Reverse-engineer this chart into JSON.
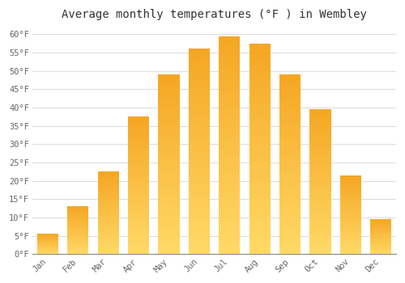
{
  "title": "Average monthly temperatures (°F ) in Wembley",
  "months": [
    "Jan",
    "Feb",
    "Mar",
    "Apr",
    "May",
    "Jun",
    "Jul",
    "Aug",
    "Sep",
    "Oct",
    "Nov",
    "Dec"
  ],
  "values": [
    5.5,
    13.0,
    22.5,
    37.5,
    49.0,
    56.0,
    59.5,
    57.5,
    49.0,
    39.5,
    21.5,
    9.5
  ],
  "bar_color_top": "#F5A623",
  "bar_color_bottom": "#FFD966",
  "ylim": [
    0,
    62
  ],
  "ytick_values": [
    0,
    5,
    10,
    15,
    20,
    25,
    30,
    35,
    40,
    45,
    50,
    55,
    60
  ],
  "background_color": "#ffffff",
  "grid_color": "#dddddd",
  "title_fontsize": 10,
  "tick_fontsize": 7.5,
  "font_family": "monospace"
}
